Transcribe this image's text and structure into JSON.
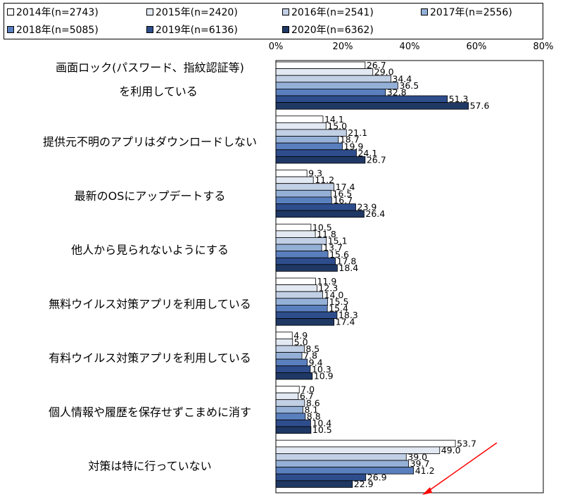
{
  "chart_data": {
    "type": "bar",
    "orientation": "horizontal",
    "title": "",
    "xlim": [
      0,
      80
    ],
    "x_ticks": [
      "0%",
      "20%",
      "40%",
      "60%",
      "80%"
    ],
    "legend_position": "top",
    "categories": [
      [
        "画面ロック(パスワード、指紋認証等)",
        "を利用している"
      ],
      [
        "提供元不明のアプリはダウンロードしない"
      ],
      [
        "最新のOSにアップデートする"
      ],
      [
        "他人から見られないようにする"
      ],
      [
        "無料ウイルス対策アプリを利用している"
      ],
      [
        "有料ウイルス対策アプリを利用している"
      ],
      [
        "個人情報や履歴を保存せずこまめに消す"
      ],
      [
        "対策は特に行っていない"
      ]
    ],
    "series": [
      {
        "name": "2014年(n=2743)",
        "color": "#ffffff",
        "values": [
          26.7,
          14.1,
          9.3,
          10.5,
          11.9,
          4.9,
          7.0,
          53.7
        ]
      },
      {
        "name": "2015年(n=2420)",
        "color": "#e2e9f3",
        "values": [
          29.0,
          15.0,
          11.2,
          11.8,
          12.3,
          5.0,
          6.7,
          49.0
        ]
      },
      {
        "name": "2016年(n=2541)",
        "color": "#c2d0e6",
        "values": [
          34.4,
          21.1,
          17.4,
          15.1,
          14.0,
          8.5,
          8.6,
          39.0
        ]
      },
      {
        "name": "2017年(n=2556)",
        "color": "#94b0d7",
        "values": [
          36.5,
          18.7,
          16.5,
          13.7,
          15.5,
          7.8,
          8.1,
          39.7
        ]
      },
      {
        "name": "2018年(n=5085)",
        "color": "#5a7fbe",
        "values": [
          32.8,
          19.9,
          16.7,
          15.6,
          15.4,
          9.4,
          8.8,
          41.2
        ]
      },
      {
        "name": "2019年(n=6136)",
        "color": "#2e4d8c",
        "values": [
          51.3,
          24.1,
          23.9,
          17.8,
          18.3,
          10.3,
          10.4,
          26.9
        ]
      },
      {
        "name": "2020年(n=6362)",
        "color": "#1f3864",
        "values": [
          57.6,
          26.7,
          26.4,
          18.4,
          17.4,
          10.9,
          10.5,
          22.9
        ]
      }
    ],
    "annotation_color": "#ff0000"
  }
}
